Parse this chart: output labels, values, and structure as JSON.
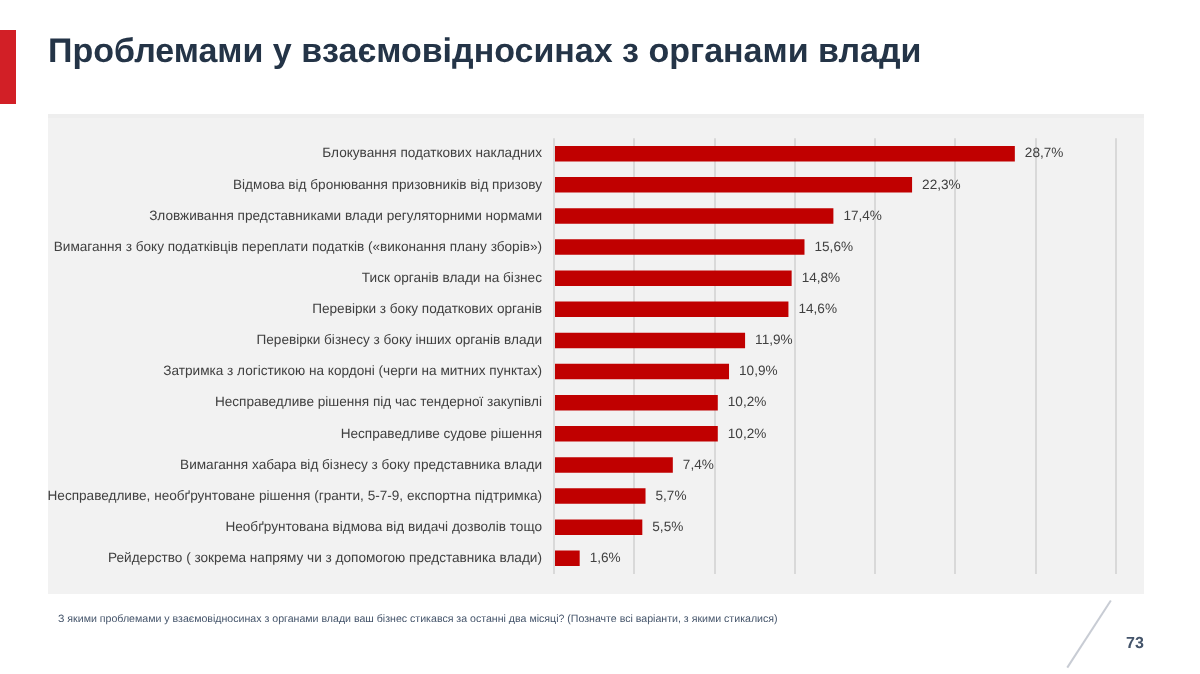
{
  "chart_data": {
    "type": "bar",
    "orientation": "horizontal",
    "title": "Проблемами у взаємовідносинах з органами влади",
    "categories": [
      "Блокування податкових накладних",
      "Відмова від бронювання призовників від призову",
      "Зловживання представниками влади регуляторними нормами",
      "Вимагання з боку податківців переплати податків («виконання плану зборів»)",
      "Тиск органів влади на бізнес",
      "Перевірки з боку податкових органів",
      "Перевірки бізнесу з боку інших органів влади",
      "Затримка з логістикою на кордоні (черги на митних пунктах)",
      "Несправедливе рішення під час тендерної закупівлі",
      "Несправедливе судове рішення",
      "Вимагання хабара від бізнесу з боку представника влади",
      "Несправедливе, необґрунтоване рішення (гранти, 5-7-9, експортна підтримка)",
      "Необґрунтована відмова від видачі дозволів тощо",
      "Рейдерство ( зокрема напряму чи з допомогою представника влади)"
    ],
    "values": [
      28.7,
      22.3,
      17.4,
      15.6,
      14.8,
      14.6,
      11.9,
      10.9,
      10.2,
      10.2,
      7.4,
      5.7,
      5.5,
      1.6
    ],
    "value_labels": [
      "28,7%",
      "22,3%",
      "17,4%",
      "15,6%",
      "14,8%",
      "14,6%",
      "11,9%",
      "10,9%",
      "10,2%",
      "10,2%",
      "7,4%",
      "5,7%",
      "5,5%",
      "1,6%"
    ],
    "color": "#c00000",
    "xlim": [
      0,
      35
    ],
    "xticks": [
      {
        "value": 0,
        "label": null
      },
      {
        "value": 5,
        "label": null
      },
      {
        "value": 10,
        "label": null
      },
      {
        "value": 15,
        "label": null
      },
      {
        "value": 20,
        "label": null
      },
      {
        "value": 25,
        "label": null
      },
      {
        "value": 30,
        "label": null
      },
      {
        "value": 35,
        "label": null
      }
    ],
    "tick_labels": "y",
    "grid": "x",
    "legend": false,
    "annotations": [
      "З якими проблемами у взаємовідносинах з органами влади ваш бізнес стикався за останні два місяці? (Позначте всі варіанти, з якими стикалися)",
      "73"
    ]
  }
}
